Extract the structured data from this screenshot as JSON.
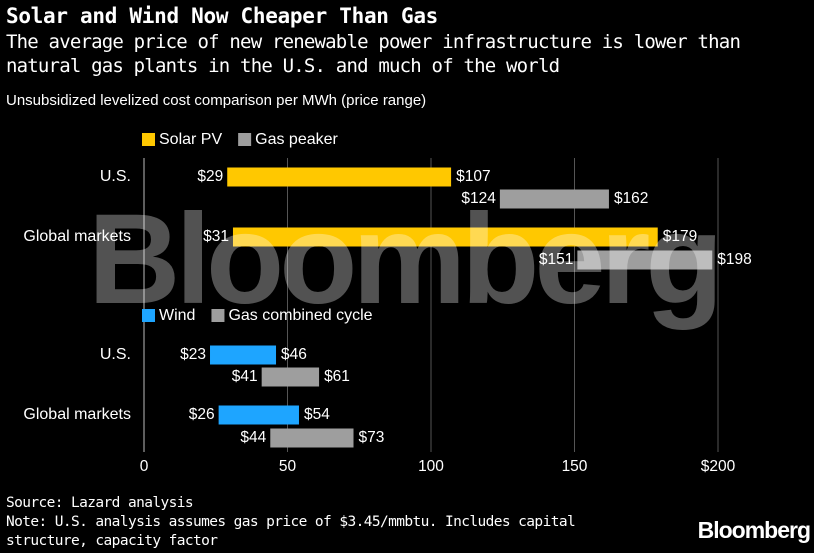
{
  "title": "Solar and Wind Now Cheaper Than Gas",
  "subtitle": "The average price of new renewable power infrastructure is lower than natural gas plants in the U.S. and much of the world",
  "units_label": "Unsubsidized levelized cost comparison per MWh (price range)",
  "source": "Source: Lazard analysis",
  "note_line1": "Note: U.S. analysis assumes gas price of $3.45/mmbtu. Includes capital",
  "note_line2": "structure, capacity factor",
  "brand": "Bloomberg",
  "watermark": "Bloomberg",
  "colors": {
    "solar": "#ffc800",
    "wind": "#1ea5ff",
    "gas": "#9e9e9e",
    "gridline": "#555555",
    "background": "#000000"
  },
  "chart_data": {
    "type": "bar",
    "orientation": "horizontal-range",
    "xlim": [
      0,
      200
    ],
    "xticks": [
      {
        "value": 0,
        "label": "0"
      },
      {
        "value": 50,
        "label": "50"
      },
      {
        "value": 100,
        "label": "100"
      },
      {
        "value": 150,
        "label": "150"
      },
      {
        "value": 200,
        "label": "$200"
      }
    ],
    "grid": true,
    "panels": [
      {
        "legend": [
          {
            "name": "Solar PV",
            "color_key": "solar"
          },
          {
            "name": "Gas peaker",
            "color_key": "gas"
          }
        ],
        "groups": [
          {
            "category": "U.S.",
            "bars": [
              {
                "series": "Solar PV",
                "color_key": "solar",
                "low": 29,
                "high": 107,
                "low_label": "$29",
                "high_label": "$107"
              },
              {
                "series": "Gas peaker",
                "color_key": "gas",
                "low": 124,
                "high": 162,
                "low_label": "$124",
                "high_label": "$162"
              }
            ]
          },
          {
            "category": "Global markets",
            "bars": [
              {
                "series": "Solar PV",
                "color_key": "solar",
                "low": 31,
                "high": 179,
                "low_label": "$31",
                "high_label": "$179"
              },
              {
                "series": "Gas peaker",
                "color_key": "gas",
                "low": 151,
                "high": 198,
                "low_label": "$151",
                "high_label": "$198"
              }
            ]
          }
        ]
      },
      {
        "legend": [
          {
            "name": "Wind",
            "color_key": "wind"
          },
          {
            "name": "Gas combined cycle",
            "color_key": "gas"
          }
        ],
        "groups": [
          {
            "category": "U.S.",
            "bars": [
              {
                "series": "Wind",
                "color_key": "wind",
                "low": 23,
                "high": 46,
                "low_label": "$23",
                "high_label": "$46"
              },
              {
                "series": "Gas combined cycle",
                "color_key": "gas",
                "low": 41,
                "high": 61,
                "low_label": "$41",
                "high_label": "$61"
              }
            ]
          },
          {
            "category": "Global markets",
            "bars": [
              {
                "series": "Wind",
                "color_key": "wind",
                "low": 26,
                "high": 54,
                "low_label": "$26",
                "high_label": "$54"
              },
              {
                "series": "Gas combined cycle",
                "color_key": "gas",
                "low": 44,
                "high": 73,
                "low_label": "$44",
                "high_label": "$73"
              }
            ]
          }
        ]
      }
    ]
  }
}
